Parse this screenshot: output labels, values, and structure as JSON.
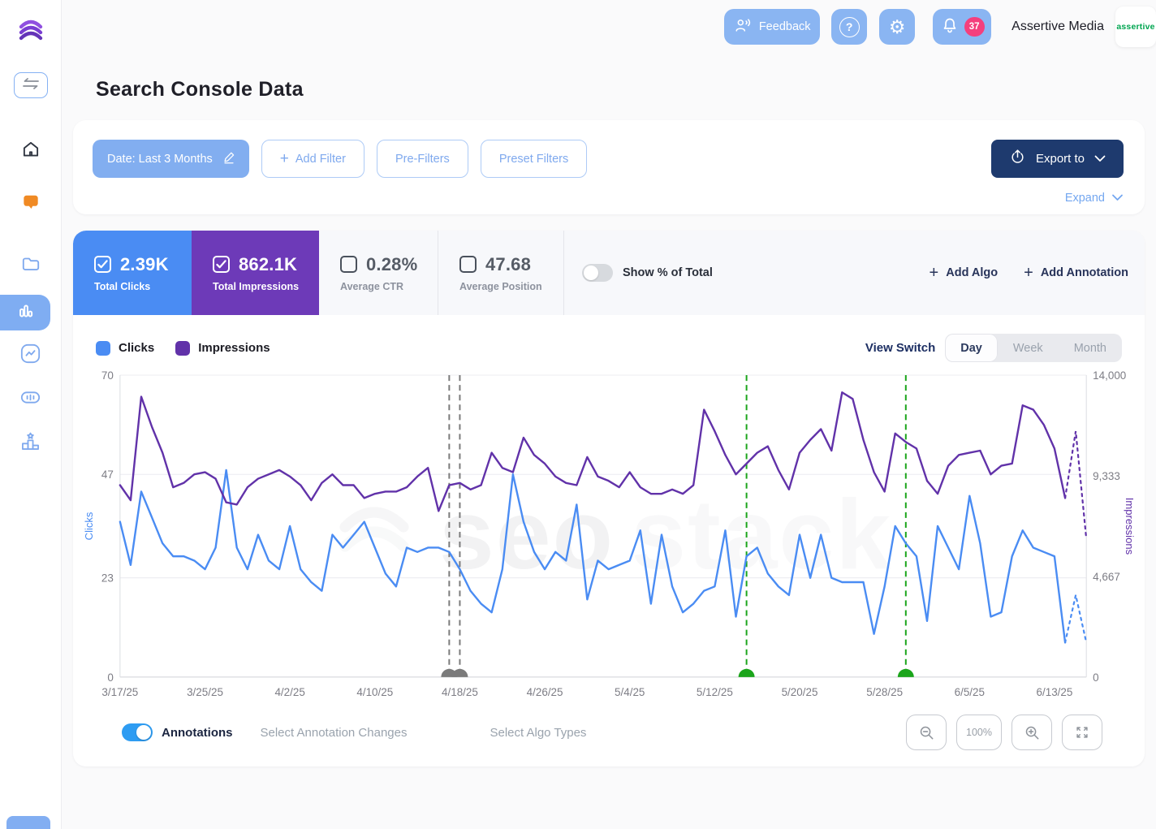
{
  "topbar": {
    "feedback_label": "Feedback",
    "notification_count": "37",
    "account_name": "Assertive Media",
    "logo_text": "assertive"
  },
  "page": {
    "title": "Search Console Data"
  },
  "icons": {
    "gear": "⚙",
    "help": "?",
    "plus": "+"
  },
  "filters": {
    "date_chip": "Date: Last 3 Months",
    "add_filter": "Add Filter",
    "pre_filters": "Pre-Filters",
    "preset_filters": "Preset Filters",
    "export_label": "Export to",
    "expand_label": "Expand"
  },
  "metrics": {
    "cards": [
      {
        "value": "2.39K",
        "label": "Total Clicks",
        "checked": true,
        "color": "#4a8cf3"
      },
      {
        "value": "862.1K",
        "label": "Total Impressions",
        "checked": true,
        "color": "#6d3ab8"
      },
      {
        "value": "0.28%",
        "label": "Average CTR",
        "checked": false,
        "color": null
      },
      {
        "value": "47.68",
        "label": "Average Position",
        "checked": false,
        "color": null
      }
    ],
    "show_pct_label": "Show % of Total",
    "add_algo": "Add Algo",
    "add_annotation": "Add Annotation"
  },
  "legend": [
    {
      "label": "Clicks",
      "color": "#4a8cf3"
    },
    {
      "label": "Impressions",
      "color": "#6132a9"
    }
  ],
  "view_switch": {
    "label": "View Switch",
    "options": [
      "Day",
      "Week",
      "Month"
    ],
    "active": "Day"
  },
  "watermark": {
    "part1": "seo",
    "part2": "stack"
  },
  "colors": {
    "accent_blue": "#8ab5f2",
    "chip_blue": "#82aef0",
    "export_navy": "#1e3a6e",
    "badge_pink": "#f43f7d",
    "annotation_green": "#1ba51b",
    "annotation_gray": "#7b7b7b",
    "toggle_on_blue": "#2e9cf2",
    "assertive_green": "#00a550",
    "sidebar_active": "#7fadf2"
  },
  "chart_data": {
    "type": "line",
    "title": "Clicks and Impressions by day",
    "x_start_date": "3/17/25",
    "x_end_date": "6/16/25",
    "x_tick_labels": [
      "3/17/25",
      "3/25/25",
      "4/2/25",
      "4/10/25",
      "4/18/25",
      "4/26/25",
      "5/4/25",
      "5/12/25",
      "5/20/25",
      "5/28/25",
      "6/5/25",
      "6/13/25"
    ],
    "x_tick_step_days": 8,
    "grid": true,
    "legend_position": "top-left",
    "left_axis": {
      "label": "Clicks",
      "color": "#4a8cf3",
      "max": 70,
      "tick_values": [
        0,
        23,
        47,
        70
      ],
      "tick_labels": [
        "0",
        "23",
        "47",
        "70"
      ]
    },
    "right_axis": {
      "label": "Impressions",
      "color": "#6132a9",
      "max": 14000,
      "tick_values": [
        0,
        4667,
        9333,
        14000
      ],
      "tick_labels": [
        "0",
        "4,667",
        "9,333",
        "14,000"
      ]
    },
    "dashed_from_index": 89,
    "series": [
      {
        "name": "Clicks",
        "axis": "left",
        "color": "#4a8cf3",
        "values": [
          36,
          26,
          43,
          37,
          31,
          28,
          28,
          27,
          25,
          30,
          48,
          30,
          25,
          33,
          27,
          25,
          35,
          25,
          22,
          20,
          33,
          30,
          33,
          36,
          30,
          24,
          21,
          30,
          29,
          30,
          30,
          29,
          25,
          20,
          17,
          15,
          25,
          47,
          36,
          29,
          25,
          29,
          27,
          40,
          18,
          27,
          25,
          26,
          27,
          34,
          17,
          33,
          21,
          15,
          17,
          20,
          21,
          34,
          14,
          28,
          30,
          24,
          21,
          19,
          33,
          23,
          33,
          23,
          22,
          22,
          22,
          10,
          21,
          35,
          31,
          28,
          13,
          35,
          30,
          25,
          42,
          31,
          14,
          15,
          28,
          34,
          30,
          29,
          28,
          8,
          19,
          8
        ]
      },
      {
        "name": "Impressions",
        "axis": "right",
        "color": "#6132a9",
        "values": [
          8900,
          8200,
          13000,
          11600,
          10400,
          8800,
          9000,
          9400,
          9500,
          9200,
          8100,
          8000,
          8800,
          9200,
          9400,
          9600,
          9300,
          8900,
          8200,
          9000,
          9400,
          8900,
          8900,
          8300,
          8500,
          8600,
          8600,
          8800,
          9300,
          9700,
          7700,
          8900,
          9000,
          8700,
          8900,
          10400,
          9700,
          9500,
          11100,
          10300,
          9900,
          9300,
          9000,
          8900,
          10200,
          9300,
          9100,
          8800,
          9500,
          8800,
          8500,
          8500,
          8700,
          8500,
          8900,
          12400,
          11400,
          10300,
          9400,
          9900,
          10400,
          10700,
          9600,
          8700,
          10400,
          11000,
          11500,
          10500,
          13200,
          12900,
          11000,
          9500,
          8600,
          11300,
          10900,
          10600,
          9100,
          8500,
          9800,
          10300,
          10400,
          10500,
          9400,
          9800,
          9900,
          12600,
          12400,
          11700,
          10600,
          8300,
          11400,
          6400
        ]
      }
    ],
    "annotations": [
      {
        "index": 31,
        "date": "4/17/25",
        "color": "#7b7b7b",
        "style": "dashed"
      },
      {
        "index": 32,
        "date": "4/18/25",
        "color": "#7b7b7b",
        "style": "dashed"
      },
      {
        "index": 59,
        "date": "5/15/25",
        "color": "#1ba51b",
        "style": "dashed"
      },
      {
        "index": 74,
        "date": "5/30/25",
        "color": "#1ba51b",
        "style": "dashed"
      }
    ]
  },
  "footer": {
    "annotations_label": "Annotations",
    "select_annotation_changes": "Select Annotation Changes",
    "select_algo_types": "Select Algo Types",
    "zoom_level": "100%"
  }
}
